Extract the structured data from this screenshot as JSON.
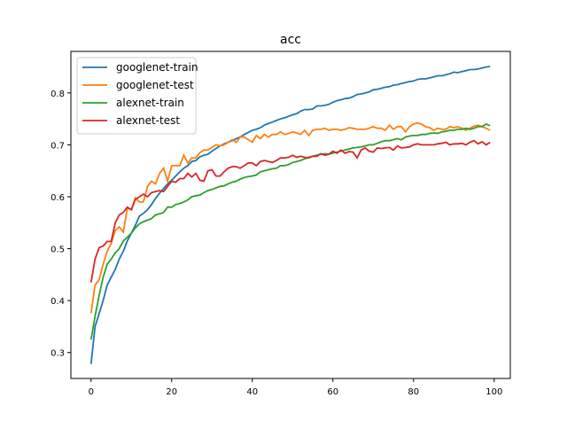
{
  "chart_data": {
    "type": "line",
    "title": "acc",
    "xlabel": "",
    "ylabel": "",
    "xlim": [
      -5,
      104
    ],
    "ylim": [
      0.25,
      0.88
    ],
    "xticks": [
      0,
      20,
      40,
      60,
      80,
      100
    ],
    "yticks": [
      0.3,
      0.4,
      0.5,
      0.6,
      0.7,
      0.8
    ],
    "ytick_labels": [
      "0.3",
      "0.4",
      "0.5",
      "0.6",
      "0.7",
      "0.8"
    ],
    "xtick_labels": [
      "0",
      "20",
      "40",
      "60",
      "80",
      "100"
    ],
    "grid": false,
    "legend_placement": "top-left",
    "series": [
      {
        "name": "googlenet-train",
        "color": "#1f77b4",
        "values": [
          0.278,
          0.35,
          0.375,
          0.4,
          0.43,
          0.445,
          0.46,
          0.48,
          0.495,
          0.515,
          0.53,
          0.545,
          0.563,
          0.568,
          0.575,
          0.585,
          0.597,
          0.607,
          0.616,
          0.625,
          0.632,
          0.64,
          0.648,
          0.655,
          0.66,
          0.668,
          0.67,
          0.677,
          0.68,
          0.682,
          0.688,
          0.693,
          0.698,
          0.702,
          0.705,
          0.708,
          0.712,
          0.715,
          0.72,
          0.724,
          0.728,
          0.73,
          0.733,
          0.738,
          0.741,
          0.744,
          0.747,
          0.75,
          0.752,
          0.755,
          0.758,
          0.76,
          0.765,
          0.768,
          0.768,
          0.769,
          0.775,
          0.775,
          0.776,
          0.778,
          0.782,
          0.785,
          0.787,
          0.789,
          0.79,
          0.793,
          0.797,
          0.798,
          0.8,
          0.802,
          0.806,
          0.807,
          0.809,
          0.811,
          0.812,
          0.815,
          0.816,
          0.818,
          0.82,
          0.822,
          0.823,
          0.826,
          0.827,
          0.827,
          0.829,
          0.831,
          0.833,
          0.833,
          0.835,
          0.837,
          0.84,
          0.839,
          0.841,
          0.843,
          0.845,
          0.845,
          0.846,
          0.848,
          0.85,
          0.851
        ]
      },
      {
        "name": "googlenet-test",
        "color": "#ff7f0e",
        "values": [
          0.376,
          0.43,
          0.44,
          0.47,
          0.495,
          0.51,
          0.535,
          0.542,
          0.532,
          0.578,
          0.575,
          0.598,
          0.59,
          0.59,
          0.62,
          0.63,
          0.625,
          0.645,
          0.655,
          0.63,
          0.66,
          0.66,
          0.66,
          0.68,
          0.665,
          0.675,
          0.675,
          0.685,
          0.69,
          0.69,
          0.695,
          0.7,
          0.698,
          0.7,
          0.705,
          0.71,
          0.705,
          0.715,
          0.715,
          0.71,
          0.705,
          0.718,
          0.712,
          0.72,
          0.715,
          0.72,
          0.72,
          0.725,
          0.72,
          0.722,
          0.725,
          0.723,
          0.72,
          0.728,
          0.718,
          0.728,
          0.73,
          0.73,
          0.732,
          0.728,
          0.73,
          0.73,
          0.728,
          0.73,
          0.733,
          0.732,
          0.73,
          0.73,
          0.73,
          0.732,
          0.735,
          0.732,
          0.732,
          0.728,
          0.738,
          0.73,
          0.735,
          0.735,
          0.725,
          0.735,
          0.74,
          0.742,
          0.74,
          0.735,
          0.733,
          0.728,
          0.732,
          0.73,
          0.73,
          0.735,
          0.733,
          0.735,
          0.732,
          0.728,
          0.732,
          0.736,
          0.738,
          0.735,
          0.732,
          0.728
        ]
      },
      {
        "name": "alexnet-train",
        "color": "#2ca02c",
        "values": [
          0.325,
          0.37,
          0.41,
          0.445,
          0.47,
          0.48,
          0.492,
          0.5,
          0.515,
          0.522,
          0.53,
          0.54,
          0.548,
          0.552,
          0.555,
          0.558,
          0.565,
          0.567,
          0.57,
          0.58,
          0.58,
          0.585,
          0.587,
          0.59,
          0.594,
          0.6,
          0.602,
          0.603,
          0.608,
          0.612,
          0.614,
          0.617,
          0.62,
          0.621,
          0.625,
          0.628,
          0.63,
          0.634,
          0.637,
          0.639,
          0.64,
          0.642,
          0.648,
          0.65,
          0.652,
          0.654,
          0.655,
          0.66,
          0.66,
          0.662,
          0.666,
          0.668,
          0.67,
          0.673,
          0.676,
          0.678,
          0.68,
          0.682,
          0.683,
          0.682,
          0.684,
          0.686,
          0.688,
          0.69,
          0.692,
          0.694,
          0.695,
          0.696,
          0.698,
          0.7,
          0.7,
          0.703,
          0.706,
          0.708,
          0.708,
          0.71,
          0.712,
          0.71,
          0.715,
          0.717,
          0.718,
          0.718,
          0.72,
          0.72,
          0.722,
          0.723,
          0.722,
          0.725,
          0.726,
          0.728,
          0.728,
          0.73,
          0.73,
          0.732,
          0.73,
          0.732,
          0.735,
          0.735,
          0.74,
          0.737
        ]
      },
      {
        "name": "alexnet-test",
        "color": "#d62728",
        "values": [
          0.435,
          0.48,
          0.502,
          0.505,
          0.514,
          0.514,
          0.55,
          0.565,
          0.57,
          0.58,
          0.575,
          0.595,
          0.6,
          0.605,
          0.6,
          0.608,
          0.61,
          0.612,
          0.61,
          0.62,
          0.63,
          0.628,
          0.635,
          0.635,
          0.645,
          0.638,
          0.645,
          0.632,
          0.63,
          0.65,
          0.652,
          0.64,
          0.64,
          0.648,
          0.655,
          0.658,
          0.658,
          0.655,
          0.66,
          0.665,
          0.665,
          0.66,
          0.668,
          0.67,
          0.668,
          0.666,
          0.67,
          0.675,
          0.675,
          0.676,
          0.68,
          0.676,
          0.678,
          0.676,
          0.675,
          0.678,
          0.678,
          0.683,
          0.68,
          0.682,
          0.688,
          0.684,
          0.69,
          0.684,
          0.687,
          0.686,
          0.675,
          0.69,
          0.694,
          0.688,
          0.686,
          0.694,
          0.693,
          0.694,
          0.695,
          0.69,
          0.698,
          0.694,
          0.695,
          0.696,
          0.7,
          0.702,
          0.7,
          0.7,
          0.7,
          0.7,
          0.702,
          0.703,
          0.705,
          0.7,
          0.702,
          0.702,
          0.703,
          0.7,
          0.705,
          0.708,
          0.702,
          0.706,
          0.7,
          0.705
        ]
      }
    ]
  }
}
